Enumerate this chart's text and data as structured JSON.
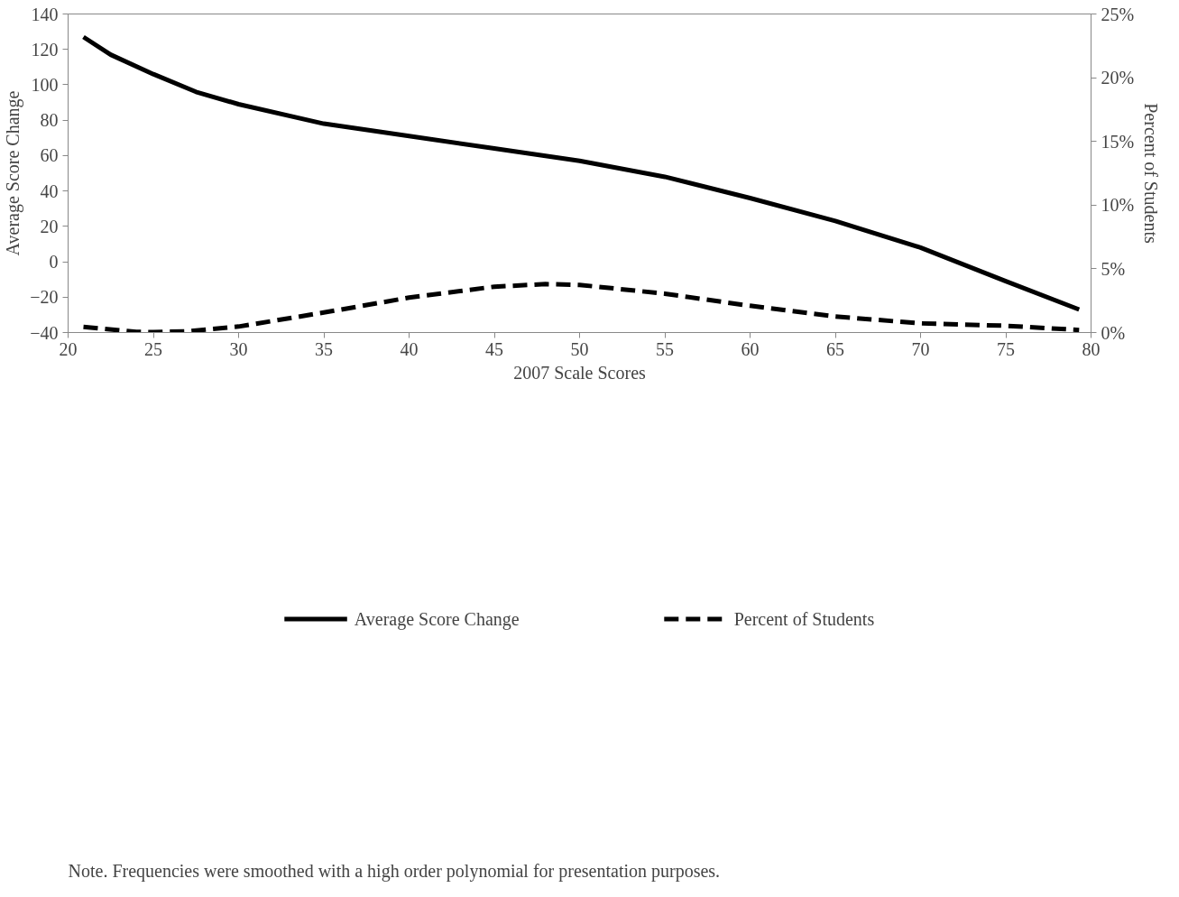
{
  "chart_data": {
    "type": "line",
    "xlabel": "2007 Scale Scores",
    "ylabel": "Average Score Change",
    "y2label": "Percent of Students",
    "xlim": [
      20,
      80
    ],
    "xticks": [
      20,
      25,
      30,
      35,
      40,
      45,
      50,
      55,
      60,
      65,
      70,
      75,
      80
    ],
    "ylim": [
      -40,
      140
    ],
    "yticks": [
      -40,
      -20,
      0,
      20,
      40,
      60,
      80,
      100,
      120,
      140
    ],
    "y2lim": [
      0,
      25
    ],
    "y2ticks": [
      {
        "value": 0,
        "label": "0%"
      },
      {
        "value": 5,
        "label": "5%"
      },
      {
        "value": 10,
        "label": "10%"
      },
      {
        "value": 15,
        "label": "15%"
      },
      {
        "value": 20,
        "label": "20%"
      },
      {
        "value": 25,
        "label": "25%"
      }
    ],
    "grid": false,
    "legend": "bottom",
    "marker": "none",
    "annotations": [
      "Note. Frequencies were smoothed with a high order polynomial for presentation purposes."
    ],
    "series": [
      {
        "name": "Average Score Change",
        "color": "#000000",
        "line_style": "solid",
        "x": [
          20.9,
          22.5,
          25,
          27.5,
          30,
          35,
          40,
          45,
          50,
          55,
          60,
          65,
          70,
          75,
          79.3
        ],
        "values": [
          127,
          117,
          106,
          96,
          89,
          78,
          71,
          64,
          57,
          48,
          36,
          23,
          8,
          -11,
          -27
        ]
      },
      {
        "name": "Percent of Students",
        "color": "#000000",
        "line_style": "dashed",
        "axis": "y2",
        "x": [
          20.9,
          24,
          25,
          27,
          30,
          35,
          40,
          45,
          48,
          50,
          55,
          60,
          65,
          70,
          75,
          79.3
        ],
        "values": [
          0.44,
          0.06,
          0.03,
          0.1,
          0.47,
          1.57,
          2.74,
          3.6,
          3.8,
          3.74,
          3.05,
          2.1,
          1.26,
          0.72,
          0.53,
          0.2
        ]
      }
    ]
  }
}
